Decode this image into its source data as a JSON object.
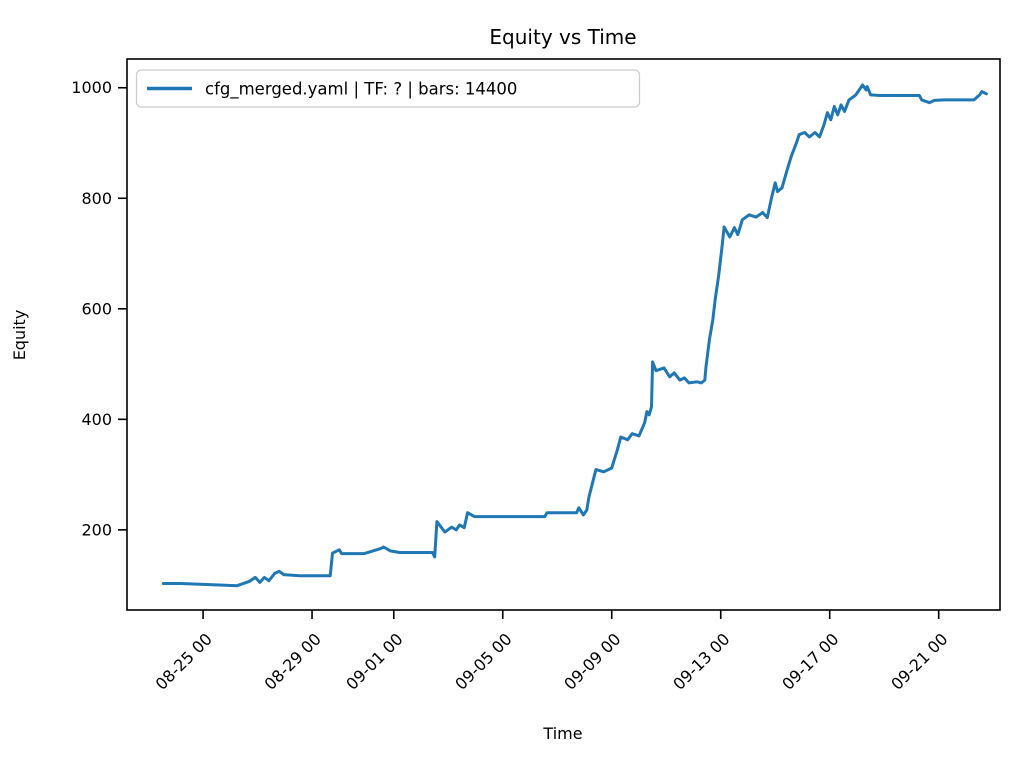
{
  "chart_data": {
    "type": "line",
    "title": "Equity vs Time",
    "xlabel": "Time",
    "ylabel": "Equity",
    "grid": false,
    "legend": {
      "position": "upper left",
      "entries": [
        "cfg_merged.yaml | TF: ? | bars: 14400"
      ]
    },
    "line_color": "#1f77b4",
    "axis_color": "#000000",
    "legend_border_color": "#cccccc",
    "x_ticks": [
      "08-25 00",
      "08-29 00",
      "09-01 00",
      "09-05 00",
      "09-09 00",
      "09-13 00",
      "09-17 00",
      "09-21 00"
    ],
    "y_ticks": [
      200,
      400,
      600,
      800,
      1000
    ],
    "xlim": [
      "08-22 05",
      "09-23 06"
    ],
    "ylim": [
      55,
      1052
    ],
    "series": [
      {
        "name": "cfg_merged.yaml | TF: ? | bars: 14400",
        "points": [
          [
            "08-23 13",
            103
          ],
          [
            "08-24 04",
            103
          ],
          [
            "08-25 06",
            101
          ],
          [
            "08-26 06",
            99
          ],
          [
            "08-26 17",
            107
          ],
          [
            "08-26 22",
            114
          ],
          [
            "08-27 02",
            105
          ],
          [
            "08-27 06",
            114
          ],
          [
            "08-27 10",
            108
          ],
          [
            "08-27 15",
            121
          ],
          [
            "08-27 19",
            125
          ],
          [
            "08-27 23",
            119
          ],
          [
            "08-28 13",
            117
          ],
          [
            "08-29 16",
            117
          ],
          [
            "08-29 18",
            158
          ],
          [
            "08-30 00",
            164
          ],
          [
            "08-30 02",
            157
          ],
          [
            "08-30 22",
            157
          ],
          [
            "08-31 12",
            166
          ],
          [
            "08-31 15",
            169
          ],
          [
            "08-31 21",
            162
          ],
          [
            "09-01 05",
            159
          ],
          [
            "09-02 10",
            159
          ],
          [
            "09-02 12",
            151
          ],
          [
            "09-02 14",
            215
          ],
          [
            "09-02 21",
            196
          ],
          [
            "09-03 03",
            205
          ],
          [
            "09-03 07",
            200
          ],
          [
            "09-03 10",
            209
          ],
          [
            "09-03 14",
            204
          ],
          [
            "09-03 17",
            231
          ],
          [
            "09-03 23",
            224
          ],
          [
            "09-06 13",
            224
          ],
          [
            "09-06 15",
            231
          ],
          [
            "09-07 17",
            231
          ],
          [
            "09-07 19",
            240
          ],
          [
            "09-07 23",
            227
          ],
          [
            "09-08 02",
            236
          ],
          [
            "09-08 04",
            260
          ],
          [
            "09-08 10",
            309
          ],
          [
            "09-08 17",
            305
          ],
          [
            "09-09 00",
            312
          ],
          [
            "09-09 05",
            345
          ],
          [
            "09-09 08",
            368
          ],
          [
            "09-09 14",
            363
          ],
          [
            "09-09 18",
            374
          ],
          [
            "09-10 00",
            370
          ],
          [
            "09-10 05",
            394
          ],
          [
            "09-10 07",
            414
          ],
          [
            "09-10 09",
            408
          ],
          [
            "09-10 11",
            423
          ],
          [
            "09-10 12",
            504
          ],
          [
            "09-10 15",
            488
          ],
          [
            "09-10 22",
            493
          ],
          [
            "09-11 03",
            477
          ],
          [
            "09-11 07",
            484
          ],
          [
            "09-11 12",
            471
          ],
          [
            "09-11 16",
            475
          ],
          [
            "09-11 20",
            466
          ],
          [
            "09-12 03",
            468
          ],
          [
            "09-12 07",
            466
          ],
          [
            "09-12 10",
            471
          ],
          [
            "09-12 11",
            495
          ],
          [
            "09-12 14",
            544
          ],
          [
            "09-12 17",
            580
          ],
          [
            "09-12 19",
            616
          ],
          [
            "09-12 22",
            658
          ],
          [
            "09-13 01",
            710
          ],
          [
            "09-13 03",
            748
          ],
          [
            "09-13 08",
            730
          ],
          [
            "09-13 12",
            747
          ],
          [
            "09-13 15",
            734
          ],
          [
            "09-13 19",
            761
          ],
          [
            "09-14 01",
            770
          ],
          [
            "09-14 07",
            766
          ],
          [
            "09-14 13",
            774
          ],
          [
            "09-14 17",
            765
          ],
          [
            "09-14 21",
            803
          ],
          [
            "09-15 00",
            828
          ],
          [
            "09-15 02",
            812
          ],
          [
            "09-15 06",
            819
          ],
          [
            "09-15 10",
            848
          ],
          [
            "09-15 14",
            875
          ],
          [
            "09-15 19",
            902
          ],
          [
            "09-15 21",
            915
          ],
          [
            "09-16 02",
            919
          ],
          [
            "09-16 06",
            911
          ],
          [
            "09-16 11",
            919
          ],
          [
            "09-16 15",
            911
          ],
          [
            "09-16 19",
            933
          ],
          [
            "09-16 22",
            955
          ],
          [
            "09-17 01",
            942
          ],
          [
            "09-17 04",
            966
          ],
          [
            "09-17 07",
            951
          ],
          [
            "09-17 10",
            969
          ],
          [
            "09-17 13",
            957
          ],
          [
            "09-17 17",
            978
          ],
          [
            "09-17 23",
            987
          ],
          [
            "09-18 05",
            1005
          ],
          [
            "09-18 08",
            996
          ],
          [
            "09-18 09",
            1002
          ],
          [
            "09-18 12",
            987
          ],
          [
            "09-18 20",
            986
          ],
          [
            "09-20 07",
            986
          ],
          [
            "09-20 09",
            978
          ],
          [
            "09-20 16",
            973
          ],
          [
            "09-20 20",
            977
          ],
          [
            "09-21 05",
            978
          ],
          [
            "09-22 07",
            978
          ],
          [
            "09-22 12",
            987
          ],
          [
            "09-22 14",
            993
          ],
          [
            "09-22 18",
            989
          ]
        ]
      }
    ]
  }
}
